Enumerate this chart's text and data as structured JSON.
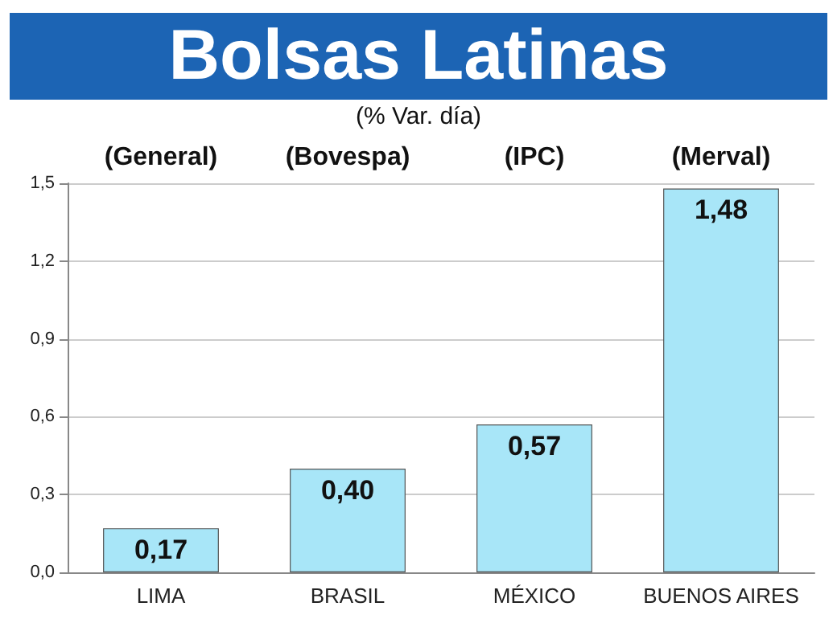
{
  "chart_data": {
    "type": "bar",
    "title": "Bolsas Latinas",
    "subtitle": "(% Var. día)",
    "categories": [
      "LIMA",
      "BRASIL",
      "MÉXICO",
      "BUENOS AIRES"
    ],
    "values": [
      0.17,
      0.4,
      0.57,
      1.48
    ],
    "value_labels": [
      "0,17",
      "0,40",
      "0,57",
      "1,48"
    ],
    "color": "#a8e6f8",
    "ylim": [
      0,
      1.5
    ],
    "yticks": [
      {
        "value": 0,
        "label": "0,0"
      },
      {
        "value": 0.3,
        "label": "0,3"
      },
      {
        "value": 0.6,
        "label": "0,6"
      },
      {
        "value": 0.9,
        "label": "0,9"
      },
      {
        "value": 1.2,
        "label": "1,2"
      },
      {
        "value": 1.5,
        "label": "1,5"
      }
    ],
    "grid": "y",
    "annotations": [
      "(General)",
      "(Bovespa)",
      "(IPC)",
      "(Merval)"
    ]
  }
}
